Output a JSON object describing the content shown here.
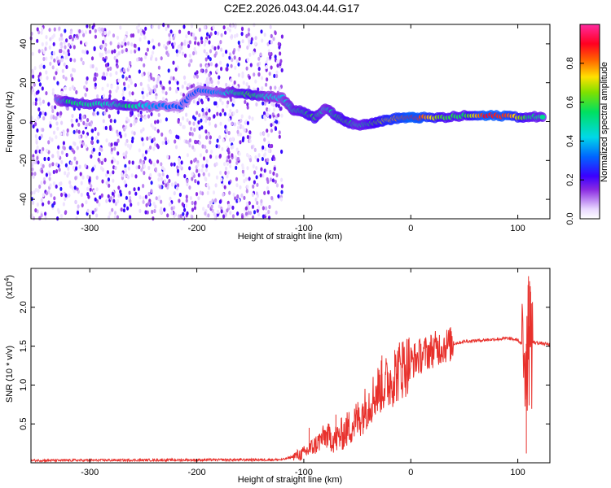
{
  "title": "C2E2.2026.043.04.44.G17",
  "chart_data": [
    {
      "type": "heatmap",
      "xlabel": "Height of straight line (km)",
      "ylabel": "Frequency (Hz)",
      "xlim": [
        -355,
        130
      ],
      "ylim": [
        -50,
        50
      ],
      "xticks": [
        -300,
        -200,
        -100,
        0,
        100
      ],
      "yticks": [
        -40,
        -20,
        0,
        20,
        40
      ],
      "colorbar": {
        "label": "Normalized spectral amplitude",
        "range": [
          0.0,
          1.0
        ],
        "ticks": [
          0.0,
          0.2,
          0.4,
          0.6,
          0.8
        ],
        "colormap": "rainbow (white-violet-blue-cyan-green-yellow-red-magenta)"
      },
      "noise_region": {
        "x_from": -355,
        "x_to": -120,
        "description_level": 0.15
      },
      "ridge": [
        {
          "x": -330,
          "f": 11,
          "amp": 0.35
        },
        {
          "x": -320,
          "f": 10,
          "amp": 0.55
        },
        {
          "x": -300,
          "f": 9,
          "amp": 0.5
        },
        {
          "x": -280,
          "f": 9,
          "amp": 0.45
        },
        {
          "x": -265,
          "f": 8,
          "amp": 0.55
        },
        {
          "x": -240,
          "f": 8,
          "amp": 0.35
        },
        {
          "x": -215,
          "f": 8,
          "amp": 0.3
        },
        {
          "x": -200,
          "f": 16,
          "amp": 0.3
        },
        {
          "x": -180,
          "f": 15,
          "amp": 0.35
        },
        {
          "x": -165,
          "f": 15,
          "amp": 0.5
        },
        {
          "x": -150,
          "f": 14,
          "amp": 0.6
        },
        {
          "x": -135,
          "f": 13,
          "amp": 0.45
        },
        {
          "x": -120,
          "f": 12,
          "amp": 0.4
        },
        {
          "x": -110,
          "f": 6,
          "amp": 0.5
        },
        {
          "x": -100,
          "f": 5,
          "amp": 0.55
        },
        {
          "x": -90,
          "f": 2,
          "amp": 0.6
        },
        {
          "x": -80,
          "f": 7,
          "amp": 0.45
        },
        {
          "x": -70,
          "f": 3,
          "amp": 0.55
        },
        {
          "x": -60,
          "f": 0,
          "amp": 0.6
        },
        {
          "x": -50,
          "f": -2,
          "amp": 0.5
        },
        {
          "x": -40,
          "f": -1,
          "amp": 0.55
        },
        {
          "x": -30,
          "f": 0,
          "amp": 0.65
        },
        {
          "x": -20,
          "f": 1,
          "amp": 0.75
        },
        {
          "x": -10,
          "f": 2,
          "amp": 0.8
        },
        {
          "x": 0,
          "f": 2,
          "amp": 0.9
        },
        {
          "x": 10,
          "f": 2,
          "amp": 0.85
        },
        {
          "x": 30,
          "f": 2,
          "amp": 0.6
        },
        {
          "x": 50,
          "f": 3,
          "amp": 0.55
        },
        {
          "x": 70,
          "f": 3,
          "amp": 0.9
        },
        {
          "x": 90,
          "f": 3,
          "amp": 0.85
        },
        {
          "x": 110,
          "f": 2,
          "amp": 0.55
        },
        {
          "x": 125,
          "f": 3,
          "amp": 0.5
        }
      ]
    },
    {
      "type": "line",
      "xlabel": "Height of straight line (km)",
      "ylabel": "SNR (10 * v/v)",
      "y_multiplier_label": "(x10",
      "y_multiplier_exp": "4",
      "y_multiplier_close": ")",
      "xlim": [
        -355,
        130
      ],
      "ylim": [
        0,
        2.5
      ],
      "xticks": [
        -300,
        -200,
        -100,
        0,
        100
      ],
      "yticks": [
        0.5,
        1.0,
        1.5,
        2.0
      ],
      "ytick_labels": [
        "0.5",
        "1.0",
        "1.5",
        "2.0"
      ],
      "series": [
        {
          "color": "#e8312c",
          "envelope": [
            {
              "x": -355,
              "y": 0.03
            },
            {
              "x": -120,
              "y": 0.04
            },
            {
              "x": -100,
              "y": 0.12
            },
            {
              "x": -90,
              "y": 0.22
            },
            {
              "x": -80,
              "y": 0.35
            },
            {
              "x": -70,
              "y": 0.3
            },
            {
              "x": -60,
              "y": 0.42
            },
            {
              "x": -50,
              "y": 0.55
            },
            {
              "x": -40,
              "y": 0.75
            },
            {
              "x": -30,
              "y": 0.95
            },
            {
              "x": -20,
              "y": 1.05
            },
            {
              "x": -10,
              "y": 1.2
            },
            {
              "x": 0,
              "y": 1.3
            },
            {
              "x": 10,
              "y": 1.38
            },
            {
              "x": 20,
              "y": 1.45
            },
            {
              "x": 30,
              "y": 1.5
            },
            {
              "x": 50,
              "y": 1.56
            },
            {
              "x": 70,
              "y": 1.58
            },
            {
              "x": 90,
              "y": 1.6
            },
            {
              "x": 100,
              "y": 1.58
            },
            {
              "x": 105,
              "y": 1.5
            },
            {
              "x": 110,
              "y": 1.55
            },
            {
              "x": 115,
              "y": 1.55
            },
            {
              "x": 130,
              "y": 1.52
            }
          ],
          "notable": [
            {
              "x": -95,
              "y": 0.45
            },
            {
              "x": -70,
              "y": 0.62
            },
            {
              "x": -27,
              "y": 1.38
            },
            {
              "x": -15,
              "y": 1.45
            },
            {
              "x": -8,
              "y": 1.55
            },
            {
              "x": 108,
              "y": 0.12
            },
            {
              "x": 110,
              "y": 2.4
            },
            {
              "x": 112,
              "y": 2.2
            }
          ]
        }
      ]
    }
  ]
}
